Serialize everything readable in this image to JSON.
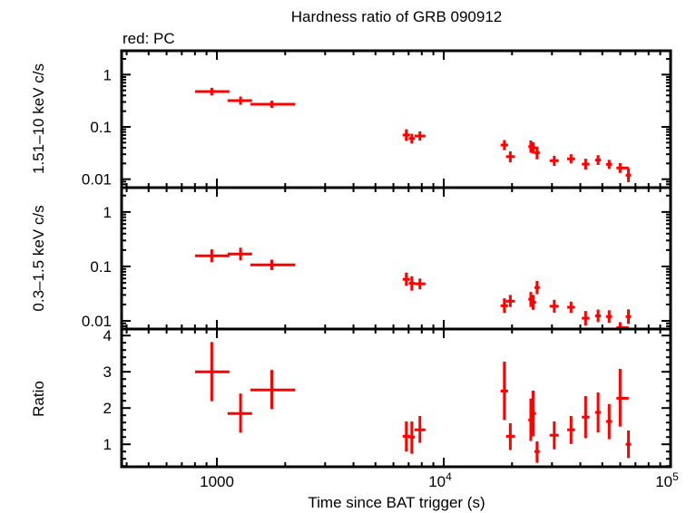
{
  "chart_data": {
    "type": "scatter",
    "title": "Hardness ratio of GRB 090912",
    "subtitle": "red: PC",
    "xlabel": "Time since BAT trigger (s)",
    "xscale": "log",
    "xlim": [
      380,
      100000
    ],
    "x_tick_labels": [
      {
        "base": "1000",
        "exp": ""
      },
      {
        "base": "10",
        "exp": "4"
      },
      {
        "base": "10",
        "exp": "5"
      }
    ],
    "grid": false,
    "series_color": "#ff0000",
    "panels": [
      {
        "ylabel": "1.51–10 keV c/s",
        "yscale": "log",
        "ylim": [
          0.0069,
          2.86
        ],
        "y_tick_labels": [
          "1",
          "0.1",
          "0.01"
        ],
        "points": [
          {
            "t": 949,
            "t_lo": 801,
            "t_hi": 1135,
            "y": 0.474,
            "y_lo": 0.4,
            "y_hi": 0.56
          },
          {
            "t": 1271,
            "t_lo": 1114,
            "t_hi": 1429,
            "y": 0.318,
            "y_lo": 0.265,
            "y_hi": 0.38
          },
          {
            "t": 1745,
            "t_lo": 1406,
            "t_hi": 2213,
            "y": 0.271,
            "y_lo": 0.232,
            "y_hi": 0.317
          },
          {
            "t": 6840,
            "t_lo": 6590,
            "t_hi": 7100,
            "y": 0.07,
            "y_lo": 0.054,
            "y_hi": 0.09
          },
          {
            "t": 7230,
            "t_lo": 7010,
            "t_hi": 7450,
            "y": 0.06,
            "y_lo": 0.048,
            "y_hi": 0.074
          },
          {
            "t": 7850,
            "t_lo": 7430,
            "t_hi": 8300,
            "y": 0.067,
            "y_lo": 0.055,
            "y_hi": 0.082
          },
          {
            "t": 18500,
            "t_lo": 17800,
            "t_hi": 19200,
            "y": 0.045,
            "y_lo": 0.036,
            "y_hi": 0.056
          },
          {
            "t": 19650,
            "t_lo": 18800,
            "t_hi": 20600,
            "y": 0.027,
            "y_lo": 0.021,
            "y_hi": 0.034
          },
          {
            "t": 24200,
            "t_lo": 23600,
            "t_hi": 24800,
            "y": 0.042,
            "y_lo": 0.032,
            "y_hi": 0.055
          },
          {
            "t": 24760,
            "t_lo": 24000,
            "t_hi": 25500,
            "y": 0.04,
            "y_lo": 0.031,
            "y_hi": 0.051
          },
          {
            "t": 25780,
            "t_lo": 25100,
            "t_hi": 26500,
            "y": 0.032,
            "y_lo": 0.024,
            "y_hi": 0.042
          },
          {
            "t": 30700,
            "t_lo": 29300,
            "t_hi": 32100,
            "y": 0.0226,
            "y_lo": 0.018,
            "y_hi": 0.028
          },
          {
            "t": 36400,
            "t_lo": 35000,
            "t_hi": 37900,
            "y": 0.0245,
            "y_lo": 0.02,
            "y_hi": 0.03
          },
          {
            "t": 42200,
            "t_lo": 40600,
            "t_hi": 43900,
            "y": 0.0194,
            "y_lo": 0.0153,
            "y_hi": 0.0246
          },
          {
            "t": 47900,
            "t_lo": 46500,
            "t_hi": 49300,
            "y": 0.0232,
            "y_lo": 0.0187,
            "y_hi": 0.0288
          },
          {
            "t": 53600,
            "t_lo": 52000,
            "t_hi": 55200,
            "y": 0.0192,
            "y_lo": 0.0157,
            "y_hi": 0.0234
          },
          {
            "t": 59900,
            "t_lo": 57700,
            "t_hi": 65300,
            "y": 0.0164,
            "y_lo": 0.0132,
            "y_hi": 0.0203
          },
          {
            "t": 65200,
            "t_lo": 63400,
            "t_hi": 67000,
            "y": 0.0119,
            "y_lo": 0.0088,
            "y_hi": 0.0162
          }
        ]
      },
      {
        "ylabel": "0.3–1.5 keV c/s",
        "yscale": "log",
        "ylim": [
          0.0071,
          2.8
        ],
        "y_tick_labels": [
          "1",
          "0.1",
          "0.01"
        ],
        "points": [
          {
            "t": 949,
            "t_lo": 801,
            "t_hi": 1135,
            "y": 0.157,
            "y_lo": 0.12,
            "y_hi": 0.206
          },
          {
            "t": 1271,
            "t_lo": 1114,
            "t_hi": 1429,
            "y": 0.169,
            "y_lo": 0.129,
            "y_hi": 0.221
          },
          {
            "t": 1745,
            "t_lo": 1406,
            "t_hi": 2213,
            "y": 0.107,
            "y_lo": 0.086,
            "y_hi": 0.133
          },
          {
            "t": 6840,
            "t_lo": 6590,
            "t_hi": 7100,
            "y": 0.058,
            "y_lo": 0.044,
            "y_hi": 0.077
          },
          {
            "t": 7230,
            "t_lo": 7010,
            "t_hi": 7450,
            "y": 0.049,
            "y_lo": 0.036,
            "y_hi": 0.066
          },
          {
            "t": 7850,
            "t_lo": 7430,
            "t_hi": 8300,
            "y": 0.048,
            "y_lo": 0.038,
            "y_hi": 0.06
          },
          {
            "t": 18500,
            "t_lo": 17800,
            "t_hi": 19200,
            "y": 0.019,
            "y_lo": 0.014,
            "y_hi": 0.026
          },
          {
            "t": 19650,
            "t_lo": 18800,
            "t_hi": 20600,
            "y": 0.023,
            "y_lo": 0.018,
            "y_hi": 0.03
          },
          {
            "t": 24200,
            "t_lo": 23600,
            "t_hi": 24800,
            "y": 0.025,
            "y_lo": 0.018,
            "y_hi": 0.034
          },
          {
            "t": 24760,
            "t_lo": 24000,
            "t_hi": 25500,
            "y": 0.022,
            "y_lo": 0.016,
            "y_hi": 0.03
          },
          {
            "t": 25780,
            "t_lo": 25100,
            "t_hi": 26500,
            "y": 0.041,
            "y_lo": 0.031,
            "y_hi": 0.054
          },
          {
            "t": 30700,
            "t_lo": 29300,
            "t_hi": 32100,
            "y": 0.0186,
            "y_lo": 0.0142,
            "y_hi": 0.0244
          },
          {
            "t": 36400,
            "t_lo": 35000,
            "t_hi": 37900,
            "y": 0.0178,
            "y_lo": 0.014,
            "y_hi": 0.0226
          },
          {
            "t": 42200,
            "t_lo": 40600,
            "t_hi": 43900,
            "y": 0.0112,
            "y_lo": 0.0082,
            "y_hi": 0.0152
          },
          {
            "t": 47900,
            "t_lo": 46500,
            "t_hi": 49300,
            "y": 0.0124,
            "y_lo": 0.0095,
            "y_hi": 0.0162
          },
          {
            "t": 53600,
            "t_lo": 52000,
            "t_hi": 55200,
            "y": 0.012,
            "y_lo": 0.0092,
            "y_hi": 0.0157
          },
          {
            "t": 59900,
            "t_lo": 57700,
            "t_hi": 65300,
            "y": 0.0075,
            "y_lo": 0.0055,
            "y_hi": 0.0095
          },
          {
            "t": 65200,
            "t_lo": 63400,
            "t_hi": 67000,
            "y": 0.012,
            "y_lo": 0.0088,
            "y_hi": 0.0163
          }
        ]
      },
      {
        "ylabel": "Ratio",
        "yscale": "linear",
        "ylim": [
          0.38,
          4.18
        ],
        "y_tick_labels": [
          "4",
          "3",
          "2",
          "1"
        ],
        "points": [
          {
            "t": 949,
            "t_lo": 801,
            "t_hi": 1135,
            "y": 3.0,
            "y_lo": 2.19,
            "y_hi": 3.82
          },
          {
            "t": 1271,
            "t_lo": 1114,
            "t_hi": 1429,
            "y": 1.85,
            "y_lo": 1.32,
            "y_hi": 2.4
          },
          {
            "t": 1745,
            "t_lo": 1406,
            "t_hi": 2213,
            "y": 2.5,
            "y_lo": 1.97,
            "y_hi": 3.05
          },
          {
            "t": 6840,
            "t_lo": 6590,
            "t_hi": 7100,
            "y": 1.22,
            "y_lo": 0.8,
            "y_hi": 1.63
          },
          {
            "t": 7230,
            "t_lo": 7010,
            "t_hi": 7450,
            "y": 1.2,
            "y_lo": 0.74,
            "y_hi": 1.63
          },
          {
            "t": 7850,
            "t_lo": 7430,
            "t_hi": 8300,
            "y": 1.4,
            "y_lo": 1.04,
            "y_hi": 1.78
          },
          {
            "t": 18500,
            "t_lo": 17800,
            "t_hi": 19200,
            "y": 2.47,
            "y_lo": 1.67,
            "y_hi": 3.28
          },
          {
            "t": 19650,
            "t_lo": 18800,
            "t_hi": 20600,
            "y": 1.22,
            "y_lo": 0.84,
            "y_hi": 1.58
          },
          {
            "t": 24200,
            "t_lo": 23600,
            "t_hi": 24800,
            "y": 1.67,
            "y_lo": 1.09,
            "y_hi": 2.26
          },
          {
            "t": 24760,
            "t_lo": 24000,
            "t_hi": 25500,
            "y": 1.85,
            "y_lo": 1.22,
            "y_hi": 2.48
          },
          {
            "t": 25780,
            "t_lo": 25100,
            "t_hi": 26500,
            "y": 0.8,
            "y_lo": 0.49,
            "y_hi": 1.08
          },
          {
            "t": 30700,
            "t_lo": 29300,
            "t_hi": 32100,
            "y": 1.25,
            "y_lo": 0.86,
            "y_hi": 1.63
          },
          {
            "t": 36400,
            "t_lo": 35000,
            "t_hi": 37900,
            "y": 1.4,
            "y_lo": 1.01,
            "y_hi": 1.78
          },
          {
            "t": 42200,
            "t_lo": 40600,
            "t_hi": 43900,
            "y": 1.75,
            "y_lo": 1.17,
            "y_hi": 2.33
          },
          {
            "t": 47900,
            "t_lo": 46500,
            "t_hi": 49300,
            "y": 1.88,
            "y_lo": 1.33,
            "y_hi": 2.43
          },
          {
            "t": 53600,
            "t_lo": 52000,
            "t_hi": 55200,
            "y": 1.63,
            "y_lo": 1.14,
            "y_hi": 2.11
          },
          {
            "t": 59900,
            "t_lo": 57700,
            "t_hi": 65300,
            "y": 2.27,
            "y_lo": 1.49,
            "y_hi": 3.08
          },
          {
            "t": 65200,
            "t_lo": 63400,
            "t_hi": 67000,
            "y": 1.0,
            "y_lo": 0.62,
            "y_hi": 1.38
          }
        ]
      }
    ]
  }
}
